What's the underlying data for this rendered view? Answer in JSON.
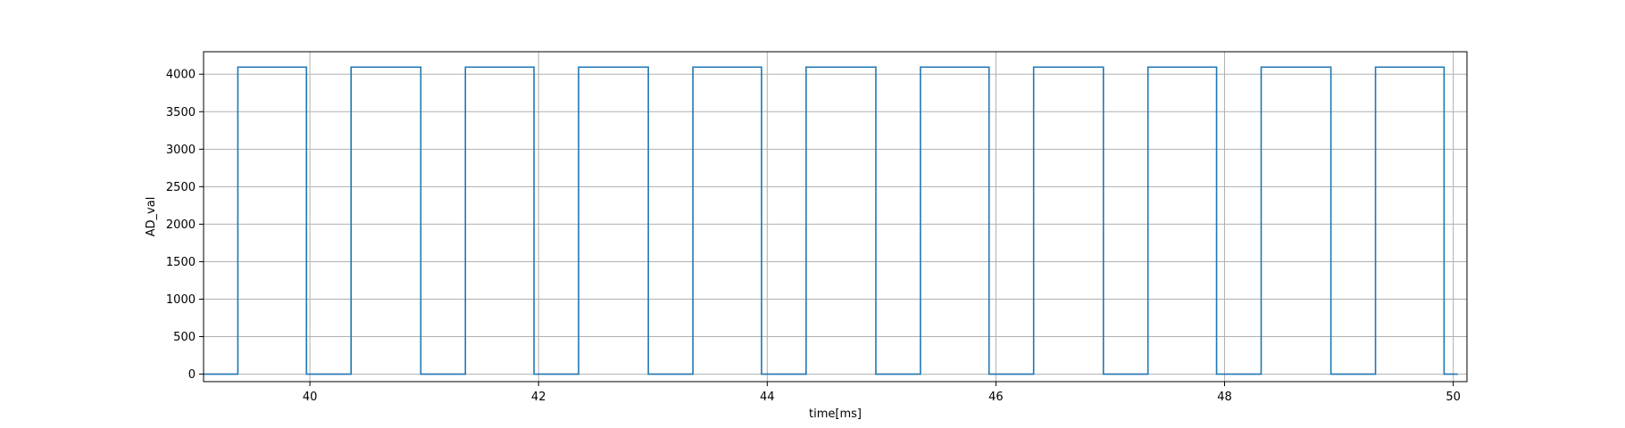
{
  "chart_data": {
    "type": "line",
    "title": "",
    "xlabel": "time[ms]",
    "ylabel": "AD_val",
    "xlim": [
      39.07,
      50.12
    ],
    "ylim": [
      -100,
      4300
    ],
    "xticks": [
      40,
      42,
      44,
      46,
      48,
      50
    ],
    "yticks": [
      0,
      500,
      1000,
      1500,
      2000,
      2500,
      3000,
      3500,
      4000
    ],
    "grid": true,
    "series": [
      {
        "color": "#1f77b4",
        "step": true,
        "x": [
          39.07,
          39.37,
          39.97,
          40.36,
          40.97,
          41.36,
          41.96,
          42.35,
          42.96,
          43.35,
          43.95,
          44.34,
          44.95,
          45.34,
          45.94,
          46.33,
          46.94,
          47.33,
          47.93,
          48.32,
          48.93,
          49.32,
          49.92,
          50.04
        ],
        "y": [
          0,
          4095,
          0,
          4095,
          0,
          4095,
          0,
          4095,
          0,
          4095,
          0,
          4095,
          0,
          4095,
          0,
          4095,
          0,
          4095,
          0,
          4095,
          0,
          4095,
          0,
          0
        ]
      }
    ]
  }
}
